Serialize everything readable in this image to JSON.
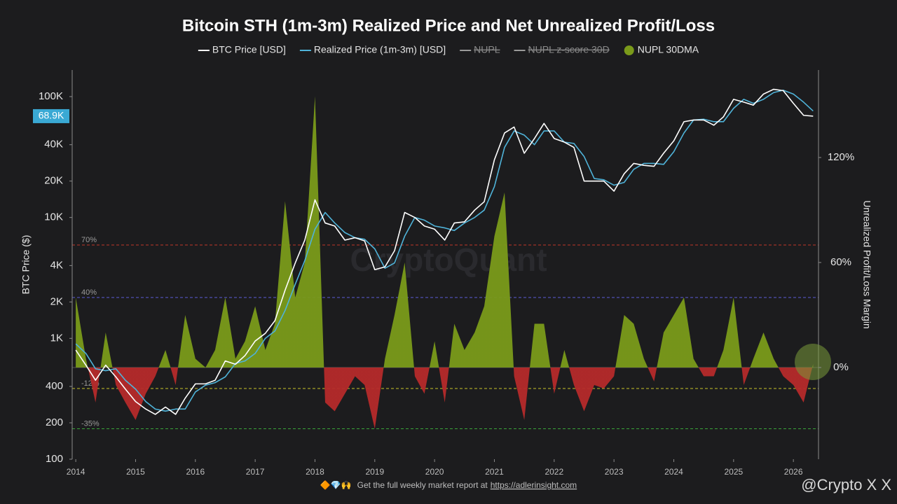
{
  "chart_data": {
    "type": "line-area",
    "title": "Bitcoin STH (1m-3m) Realized Price and Net Unrealized Profit/Loss",
    "y_label": "BTC Price ($)",
    "y2_label": "Unrealized Profit/Loss Margin",
    "watermark": "CryptoQuant",
    "footer": {
      "icons": "🔶💎🙌",
      "text": "Get the full weekly market report at",
      "link": "https://adlerinsight.com"
    },
    "brand": "@Crypto X X",
    "current_price": {
      "value": 68900,
      "label": "68.9K",
      "color": "#3aa9d4"
    },
    "log_scale": true,
    "xlim": [
      2013.94,
      2026.42
    ],
    "xticks": [
      2014,
      2015,
      2016,
      2017,
      2018,
      2019,
      2020,
      2021,
      2022,
      2023,
      2024,
      2025,
      2026
    ],
    "ylim": [
      100,
      166000
    ],
    "yticks": [
      100,
      200,
      400,
      {
        "value": 1000,
        "label": "1K"
      },
      {
        "value": 2000,
        "label": "2K"
      },
      {
        "value": 4000,
        "label": "4K"
      },
      {
        "value": 10000,
        "label": "10K"
      },
      {
        "value": 20000,
        "label": "20K"
      },
      {
        "value": 40000,
        "label": "40K"
      },
      {
        "value": 100000,
        "label": "100K"
      }
    ],
    "y2lim": [
      -52.4,
      170
    ],
    "y2ticks": [
      {
        "value": 0,
        "label": "0%"
      },
      {
        "value": 60,
        "label": "60%"
      },
      {
        "value": 120,
        "label": "120%"
      }
    ],
    "reference_lines": [
      {
        "value": 70,
        "label": "70%",
        "color": "#c0392b"
      },
      {
        "value": 40,
        "label": "40%",
        "color": "#5b5bd6"
      },
      {
        "value": -12,
        "label": "-12%",
        "color": "#c9c42a"
      },
      {
        "value": -35,
        "label": "-35%",
        "color": "#3aa53a"
      }
    ],
    "x": [
      2014,
      2014.17,
      2014.33,
      2014.5,
      2014.67,
      2014.83,
      2015,
      2015.17,
      2015.33,
      2015.5,
      2015.67,
      2015.83,
      2016,
      2016.17,
      2016.33,
      2016.5,
      2016.67,
      2016.83,
      2017,
      2017.17,
      2017.33,
      2017.5,
      2017.67,
      2017.83,
      2018,
      2018.17,
      2018.33,
      2018.5,
      2018.67,
      2018.83,
      2019,
      2019.17,
      2019.33,
      2019.5,
      2019.67,
      2019.83,
      2020,
      2020.17,
      2020.33,
      2020.5,
      2020.67,
      2020.83,
      2021,
      2021.17,
      2021.33,
      2021.5,
      2021.67,
      2021.83,
      2022,
      2022.17,
      2022.33,
      2022.5,
      2022.67,
      2022.83,
      2023,
      2023.17,
      2023.33,
      2023.5,
      2023.67,
      2023.83,
      2024,
      2024.17,
      2024.33,
      2024.5,
      2024.67,
      2024.83,
      2025,
      2025.17,
      2025.33,
      2025.5,
      2025.67,
      2025.83,
      2026,
      2026.17,
      2026.33
    ],
    "series": [
      {
        "name": "BTC Price [USD]",
        "color": "#ffffff",
        "kind": "line",
        "values": [
          800,
          600,
          450,
          600,
          480,
          380,
          300,
          260,
          235,
          270,
          235,
          320,
          420,
          420,
          450,
          650,
          610,
          720,
          950,
          1100,
          1400,
          2500,
          4200,
          6500,
          14000,
          9000,
          8500,
          6500,
          6800,
          6400,
          3700,
          3900,
          5300,
          11000,
          10000,
          8500,
          8000,
          6500,
          9000,
          9200,
          11500,
          13500,
          30000,
          50000,
          56000,
          34000,
          45000,
          60000,
          45000,
          42000,
          38000,
          20000,
          20000,
          20000,
          16500,
          23000,
          28000,
          27000,
          26500,
          34000,
          43000,
          62000,
          64000,
          64000,
          58000,
          68000,
          95000,
          90000,
          85000,
          105000,
          115000,
          112000,
          88000,
          70000,
          68900
        ]
      },
      {
        "name": "Realized Price (1m-3m) [USD]",
        "color": "#4fb3d9",
        "kind": "line",
        "values": [
          900,
          750,
          560,
          540,
          560,
          450,
          380,
          300,
          260,
          250,
          260,
          260,
          360,
          410,
          430,
          480,
          620,
          650,
          750,
          1000,
          1150,
          1700,
          2800,
          4400,
          8000,
          11000,
          9000,
          7500,
          6800,
          6600,
          5500,
          3800,
          4200,
          7000,
          10000,
          9500,
          8500,
          8200,
          7800,
          9000,
          10000,
          11500,
          18000,
          38000,
          52000,
          48000,
          40000,
          52000,
          52000,
          42000,
          41000,
          32000,
          21000,
          20500,
          18500,
          19500,
          25000,
          28000,
          28000,
          27500,
          35000,
          50000,
          64000,
          65000,
          62000,
          62000,
          80000,
          95000,
          88000,
          95000,
          108000,
          113000,
          105000,
          90000,
          76000
        ]
      },
      {
        "name": "NUPL",
        "color": "#9a9a9a",
        "hidden": true
      },
      {
        "name": "NUPL z-score 30D",
        "color": "#9a9a9a",
        "hidden": true
      },
      {
        "name": "NUPL 30DMA",
        "color": "#7a9a1a",
        "negative_color": "#b52a2a",
        "kind": "area",
        "axis": "y2",
        "values": [
          40,
          5,
          -20,
          20,
          -10,
          -20,
          -30,
          -15,
          -5,
          10,
          -10,
          30,
          5,
          0,
          10,
          40,
          5,
          15,
          35,
          10,
          25,
          95,
          40,
          60,
          155,
          -20,
          -25,
          -15,
          -5,
          -10,
          -35,
          5,
          30,
          60,
          -5,
          -15,
          15,
          -20,
          25,
          10,
          20,
          35,
          75,
          100,
          -5,
          -30,
          25,
          25,
          -15,
          10,
          -10,
          -25,
          -10,
          -12,
          -5,
          30,
          25,
          5,
          -8,
          20,
          30,
          40,
          5,
          -5,
          -5,
          10,
          40,
          -10,
          5,
          20,
          5,
          -5,
          -10,
          -20,
          2
        ]
      }
    ]
  }
}
